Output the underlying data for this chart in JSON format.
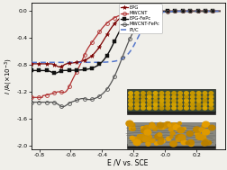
{
  "title": "",
  "xlabel": "E /V vs. SCE",
  "xlim": [
    -0.85,
    0.38
  ],
  "ylim": [
    -2.05,
    0.12
  ],
  "yticks": [
    0.0,
    -0.4,
    -0.8,
    -1.2,
    -1.6,
    -2.0
  ],
  "xticks": [
    -0.8,
    -0.6,
    -0.4,
    -0.2,
    -0.0,
    0.2
  ],
  "xtick_labels": [
    "-0.8",
    "-0.6",
    "-0.4",
    "-0.2",
    "-0.0",
    "0.2"
  ],
  "ytick_labels": [
    "0.0",
    "-0.4",
    "-0.8",
    "-1.2",
    "-1.6",
    "-2.0"
  ],
  "background_color": "#f0efea",
  "plot_bg": "#f0efea",
  "colors": {
    "EPG": "#7a0000",
    "MWCNT": "#b03030",
    "EPG_FePc": "#111111",
    "MWCNT_FePc": "#555555",
    "PtC": "#5577cc"
  },
  "legend_labels": [
    "EPG",
    "MWCNT",
    "EPG-FePc",
    "MWCNT-FePc",
    "Pt/C"
  ]
}
